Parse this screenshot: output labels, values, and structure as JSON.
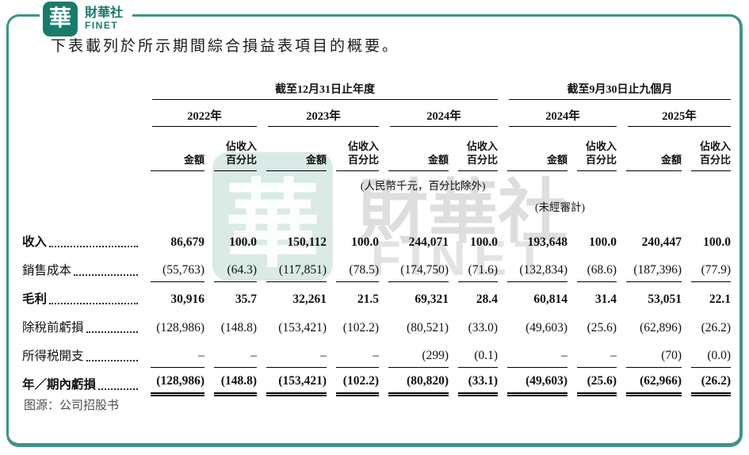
{
  "logo": {
    "seal_char": "華",
    "name": "財華社",
    "subname": "FINET"
  },
  "heading": "下表載列於所示期間綜合損益表項目的概要。",
  "watermark": {
    "seal_char": "華",
    "text": "財華社",
    "subtext": "FINET"
  },
  "source": "图源：公司招股书",
  "colors": {
    "brand": "#187c6b",
    "frame_border": "#3d948a"
  },
  "table": {
    "group_headers": [
      {
        "label": "截至12月31日止年度"
      },
      {
        "label": "截至9月30日止九個月"
      }
    ],
    "years": [
      "2022年",
      "2023年",
      "2024年",
      "2024年",
      "2025年"
    ],
    "sub_amount": "金額",
    "sub_pct_line1": "佔收入",
    "sub_pct_line2": "百分比",
    "note_currency": "(人民幣千元，百分比除外)",
    "note_unaudited": "(未經審計)",
    "rows": [
      {
        "label": "收入",
        "bold": true,
        "rule": "none",
        "values": [
          "86,679",
          "100.0",
          "150,112",
          "100.0",
          "244,071",
          "100.0",
          "193,648",
          "100.0",
          "240,447",
          "100.0"
        ]
      },
      {
        "label": "銷售成本",
        "bold": false,
        "rule": "single",
        "values": [
          "(55,763)",
          "(64.3)",
          "(117,851)",
          "(78.5)",
          "(174,750)",
          "(71.6)",
          "(132,834)",
          "(68.6)",
          "(187,396)",
          "(77.9)"
        ]
      },
      {
        "label": "毛利",
        "bold": true,
        "rule": "none",
        "values": [
          "30,916",
          "35.7",
          "32,261",
          "21.5",
          "69,321",
          "28.4",
          "60,814",
          "31.4",
          "53,051",
          "22.1"
        ]
      },
      {
        "label": "除稅前虧損",
        "bold": false,
        "rule": "none",
        "values": [
          "(128,986)",
          "(148.8)",
          "(153,421)",
          "(102.2)",
          "(80,521)",
          "(33.0)",
          "(49,603)",
          "(25.6)",
          "(62,896)",
          "(26.2)"
        ]
      },
      {
        "label": "所得税開支",
        "bold": false,
        "rule": "single",
        "values": [
          "–",
          "–",
          "–",
          "–",
          "(299)",
          "(0.1)",
          "–",
          "–",
          "(70)",
          "(0.0)"
        ]
      },
      {
        "label": "年／期內虧損",
        "bold": true,
        "rule": "double",
        "values": [
          "(128,986)",
          "(148.8)",
          "(153,421)",
          "(102.2)",
          "(80,820)",
          "(33.1)",
          "(49,603)",
          "(25.6)",
          "(62,966)",
          "(26.2)"
        ]
      }
    ]
  }
}
